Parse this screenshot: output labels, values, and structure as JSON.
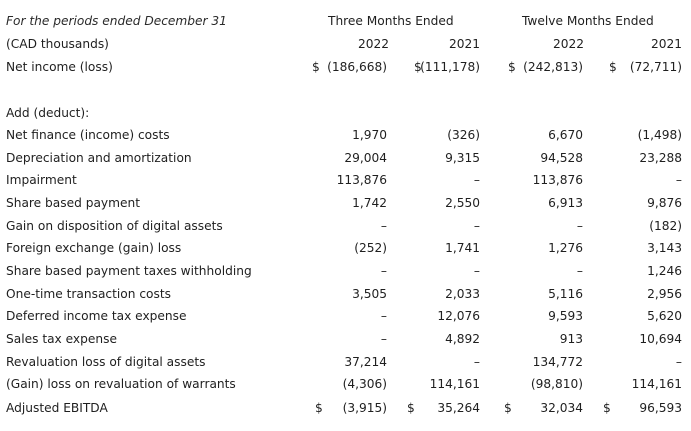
{
  "header": {
    "periods_label": "For the periods ended December 31",
    "units_label": "(CAD thousands)",
    "three_months": "Three Months Ended",
    "twelve_months": "Twelve Months Ended",
    "years": [
      "2022",
      "2021",
      "2022",
      "2021"
    ]
  },
  "net_income": {
    "label": "Net income (loss)",
    "values": [
      "(186,668)",
      "(111,178)",
      "(242,813)",
      "(72,711)"
    ],
    "currency": "$"
  },
  "add_deduct_label": "Add (deduct):",
  "rows": [
    {
      "label": "Net finance (income) costs",
      "values": [
        "1,970",
        "(326)",
        "6,670",
        "(1,498)"
      ]
    },
    {
      "label": "Depreciation and amortization",
      "values": [
        "29,004",
        "9,315",
        "94,528",
        "23,288"
      ]
    },
    {
      "label": "Impairment",
      "values": [
        "113,876",
        "–",
        "113,876",
        "–"
      ]
    },
    {
      "label": "Share based payment",
      "values": [
        "1,742",
        "2,550",
        "6,913",
        "9,876"
      ]
    },
    {
      "label": "Gain on disposition of digital assets",
      "values": [
        "–",
        "–",
        "–",
        "(182)"
      ]
    },
    {
      "label": "Foreign exchange (gain) loss",
      "values": [
        "(252)",
        "1,741",
        "1,276",
        "3,143"
      ]
    },
    {
      "label": "Share based payment taxes withholding",
      "values": [
        "–",
        "–",
        "–",
        "1,246"
      ]
    },
    {
      "label": "One-time transaction costs",
      "values": [
        "3,505",
        "2,033",
        "5,116",
        "2,956"
      ]
    },
    {
      "label": "Deferred income tax expense",
      "values": [
        "–",
        "12,076",
        "9,593",
        "5,620"
      ]
    },
    {
      "label": "Sales tax expense",
      "values": [
        "–",
        "4,892",
        "913",
        "10,694"
      ]
    },
    {
      "label": "Revaluation loss of digital assets",
      "values": [
        "37,214",
        "–",
        "134,772",
        "–"
      ]
    },
    {
      "label": "(Gain) loss on revaluation of warrants",
      "values": [
        "(4,306)",
        "114,161",
        "(98,810)",
        "114,161"
      ]
    }
  ],
  "adjusted_ebitda": {
    "label": "Adjusted EBITDA",
    "values": [
      "(3,915)",
      "35,264",
      "32,034",
      "96,593"
    ],
    "currency": "$"
  }
}
